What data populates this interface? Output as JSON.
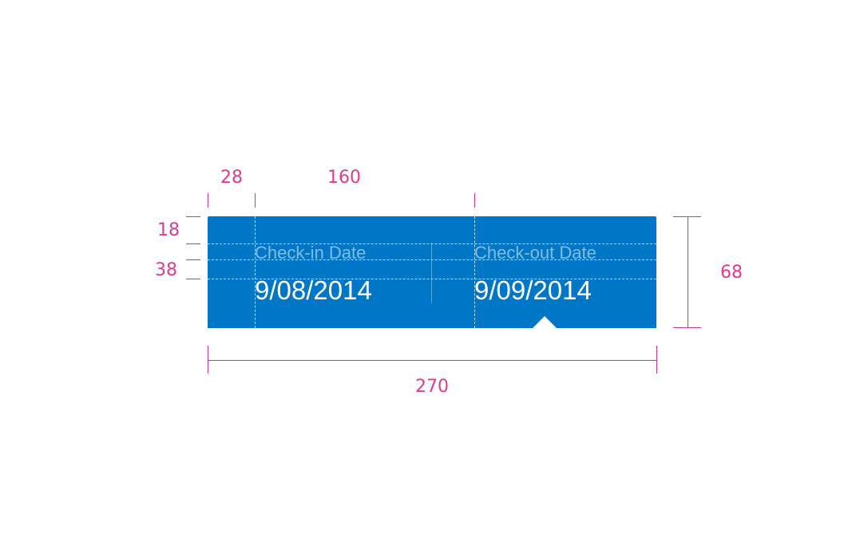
{
  "dimensions": {
    "left_padding": "28",
    "field_width": "160",
    "label_band_height": "18",
    "value_band_height": "38",
    "total_height": "68",
    "total_width": "270"
  },
  "fields": [
    {
      "label": "Check-in Date",
      "value": "9/08/2014"
    },
    {
      "label": "Check-out Date",
      "value": "9/09/2014"
    }
  ],
  "colors": {
    "card_background": "#0077c6",
    "dimension_annotation": "#e23a8e",
    "page_background": "#ffffff"
  }
}
